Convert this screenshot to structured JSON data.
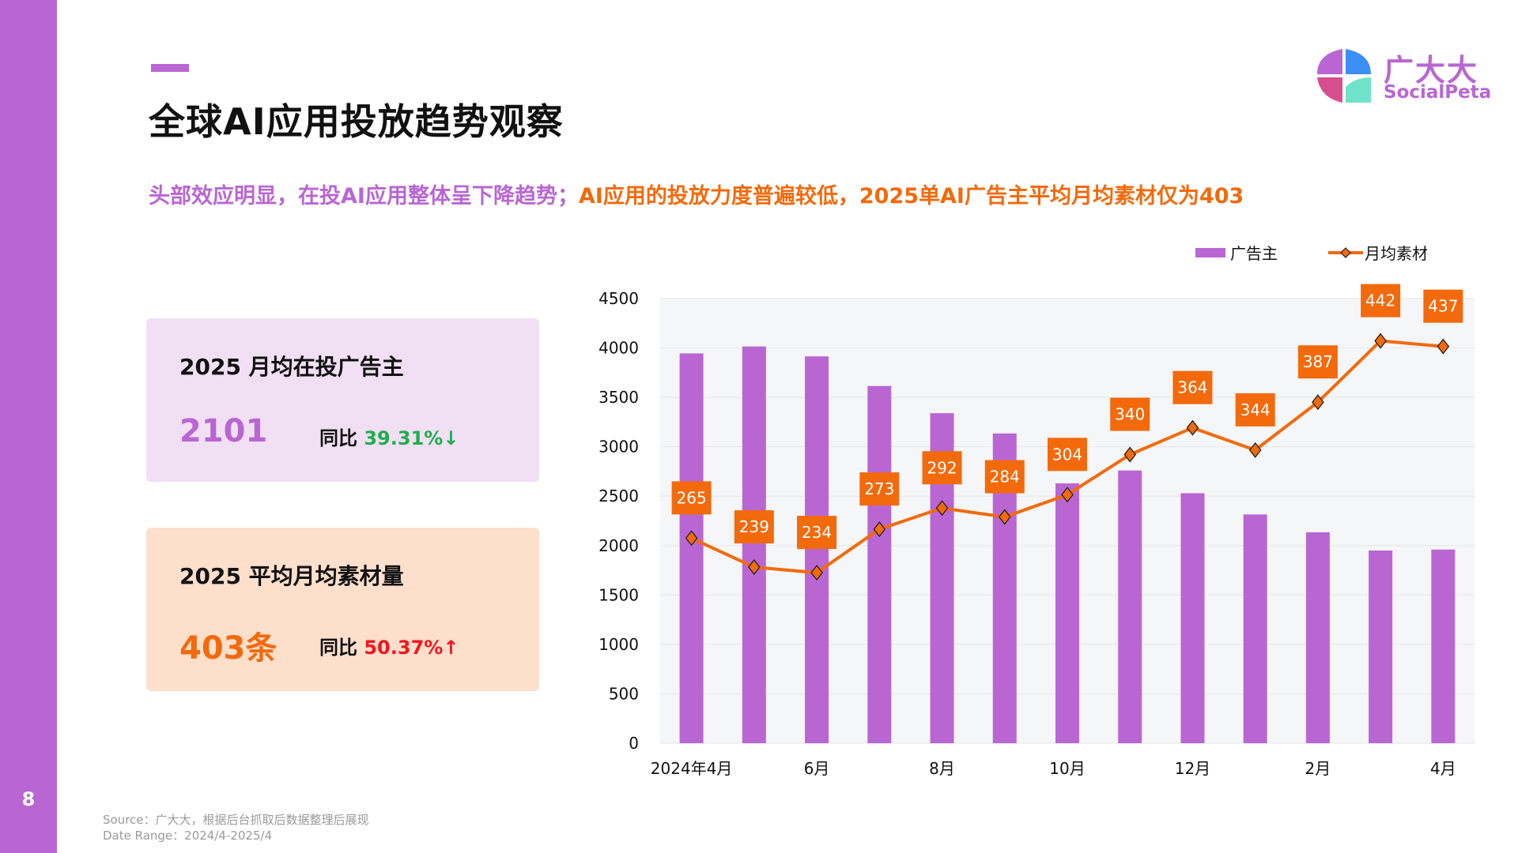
{
  "page_number": "8",
  "title": "全球AI应用投放趋势观察",
  "subtitle": {
    "part1": "头部效应明显，在投AI应用整体呈下降趋势；",
    "part2": "AI应用的投放力度普遍较低，2025单AI广告主平均月均素材仅为403"
  },
  "logo": {
    "cn": "广大大",
    "en": "SocialPeta"
  },
  "cards": [
    {
      "title": "2025 月均在投广告主",
      "value": "2101",
      "yoy_label": "同比",
      "yoy_value": "39.31%↓",
      "value_color": "#B966D3",
      "yoy_color": "#1FAE4B"
    },
    {
      "title": "2025 平均月均素材量",
      "value": "403条",
      "yoy_label": "同比",
      "yoy_value": "50.37%↑",
      "value_color": "#F26A0C",
      "yoy_color": "#F0161E"
    }
  ],
  "footer": {
    "source": "Source：广大大，根据后台抓取后数据整理后展现",
    "date_range": "Date Range：2024/4-2025/4"
  },
  "colors": {
    "purple": "#B966D3",
    "orange": "#F26A0C",
    "plot_bg": "#F5F6F8"
  },
  "chart_data": {
    "type": "bar+line",
    "categories": [
      "2024年4月",
      "",
      "6月",
      "",
      "8月",
      "",
      "10月",
      "",
      "12月",
      "",
      "2月",
      "",
      "4月"
    ],
    "series": [
      {
        "name": "广告主",
        "type": "bar",
        "axis": "left",
        "values": [
          3945,
          4015,
          3915,
          3615,
          3340,
          3135,
          2630,
          2760,
          2530,
          2315,
          2135,
          1950,
          1960
        ]
      },
      {
        "name": "月均素材",
        "type": "line",
        "axis": "right-hidden",
        "values": [
          265,
          239,
          234,
          273,
          292,
          284,
          304,
          340,
          364,
          344,
          387,
          442,
          437
        ],
        "data_labels": [
          "265",
          "239",
          "234",
          "273",
          "292",
          "284",
          "304",
          "340",
          "364",
          "344",
          "387",
          "442",
          "437"
        ]
      }
    ],
    "ylim": [
      0,
      4500
    ],
    "y2lim": [
      81,
      480
    ],
    "yticks": [
      "0",
      "500",
      "1000",
      "1500",
      "2000",
      "2500",
      "3000",
      "3500",
      "4000",
      "4500"
    ],
    "legend": "top-right",
    "grid": true
  }
}
